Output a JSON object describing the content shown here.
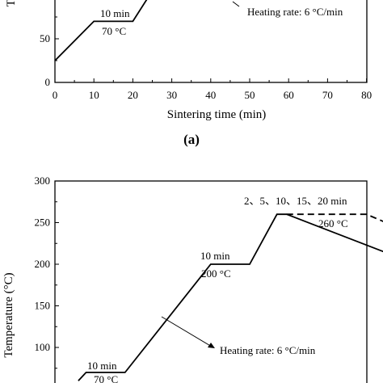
{
  "chart_data": [
    {
      "type": "line",
      "panel_label": "(a)",
      "xlabel": "Sintering time (min)",
      "ylabel": "Te",
      "xlim": [
        0,
        85
      ],
      "ylim": [
        0,
        200
      ],
      "xticks": [
        "0",
        "10",
        "20",
        "30",
        "40",
        "50",
        "60",
        "70",
        "80"
      ],
      "yticks": [
        "0",
        "50"
      ],
      "series": [
        {
          "x": [
            0,
            10,
            20,
            25
          ],
          "y": [
            25,
            70,
            70,
            105
          ],
          "style": "solid"
        }
      ],
      "annotations": {
        "hold_time": "10 min",
        "hold_temp": "70 °C",
        "rate": "Heating rate: 6 °C/min"
      }
    },
    {
      "type": "line",
      "ylabel": "Temperature (°C)",
      "xlim": [
        0,
        85
      ],
      "ylim": [
        50,
        300
      ],
      "yticks": [
        "100",
        "150",
        "200",
        "250",
        "300"
      ],
      "series": [
        {
          "x": [
            6,
            8,
            18,
            40,
            50,
            57,
            59.5,
            85
          ],
          "y": [
            60,
            70,
            70,
            200,
            200,
            260,
            260,
            214
          ],
          "style": "solid"
        },
        {
          "x": [
            59.5,
            80,
            85
          ],
          "y": [
            260,
            260,
            250
          ],
          "style": "dashed"
        }
      ],
      "annotations": {
        "hold_times": "2、5、10、15、20 min",
        "peak_temp": "260 °C",
        "mid_hold_time": "10 min",
        "mid_hold_temp": "200 °C",
        "rate": "Heating rate: 6 °C/min",
        "low_hold_time": "10 min",
        "low_hold_temp": "70 °C"
      }
    }
  ]
}
